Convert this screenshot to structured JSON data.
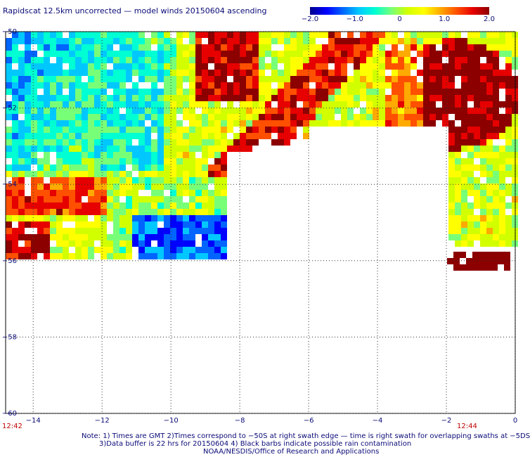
{
  "title": "Rapidscat 12.5km uncorrected — model winds 20150604 ascending",
  "colorbar": {
    "ticks": [
      {
        "label": "−2.0",
        "value": -2.0
      },
      {
        "label": "−1.0",
        "value": -1.0
      },
      {
        "label": "0",
        "value": 0
      },
      {
        "label": "1.0",
        "value": 1.0
      },
      {
        "label": "2.0",
        "value": 2.0
      }
    ],
    "colors": [
      "#00008c",
      "#0000ff",
      "#0064ff",
      "#00c8ff",
      "#00ffd2",
      "#78ff78",
      "#d2ff00",
      "#ffff00",
      "#ffaa00",
      "#ff5000",
      "#e60000",
      "#8c0000"
    ]
  },
  "map": {
    "lon_range": [
      -14.8,
      0
    ],
    "lat_range": [
      -50,
      -60
    ],
    "lon_ticks": [
      {
        "label": "−14",
        "value": -14
      },
      {
        "label": "−12",
        "value": -12
      },
      {
        "label": "−10",
        "value": -10
      },
      {
        "label": "−8",
        "value": -8
      },
      {
        "label": "−6",
        "value": -6
      },
      {
        "label": "−4",
        "value": -4
      },
      {
        "label": "−2",
        "value": -2
      },
      {
        "label": "0",
        "value": 0
      }
    ],
    "lat_ticks": [
      {
        "label": "−50",
        "value": -50
      },
      {
        "label": "−52",
        "value": -52
      },
      {
        "label": "−54",
        "value": -54
      },
      {
        "label": "−56",
        "value": -56
      },
      {
        "label": "−58",
        "value": -58
      },
      {
        "label": "−60",
        "value": -60
      }
    ],
    "gridlines": true,
    "swath_lat_south": -55.9
  },
  "times": {
    "left": "12:42",
    "right": "12:44"
  },
  "notes": [
    "Note: 1) Times are GMT 2)Times correspond to −50S at right swath edge — time is right swath for overlapping swaths at −5DS",
    "3)Data buffer is 22 hrs for 20150604 4) Black barbs indicate possible rain contamination",
    "NOAA/NESDIS/Office of Research and Applications"
  ]
}
